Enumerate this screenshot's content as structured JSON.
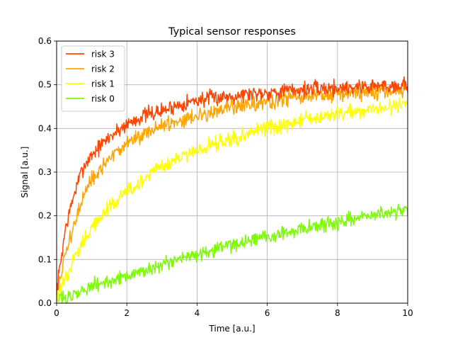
{
  "chart_data": {
    "type": "line",
    "title": "Typical sensor responses",
    "xlabel": "Time [a.u.]",
    "ylabel": "Signal [a.u.]",
    "xlim": [
      0,
      10
    ],
    "ylim": [
      0,
      0.6
    ],
    "xticks": [
      0,
      2,
      4,
      6,
      8,
      10
    ],
    "yticks": [
      0.0,
      0.1,
      0.2,
      0.3,
      0.4,
      0.5,
      0.6
    ],
    "grid": true,
    "legend_position": "top-left",
    "x": [
      0,
      0.25,
      0.5,
      0.75,
      1.0,
      1.5,
      2.0,
      2.5,
      3.0,
      3.5,
      4.0,
      4.5,
      5.0,
      5.5,
      6.0,
      6.5,
      7.0,
      7.5,
      8.0,
      8.5,
      9.0,
      9.5,
      10.0
    ],
    "series": [
      {
        "name": "risk 3",
        "color": "#ff4500",
        "values": [
          0.03,
          0.17,
          0.25,
          0.31,
          0.34,
          0.38,
          0.41,
          0.43,
          0.44,
          0.455,
          0.465,
          0.47,
          0.475,
          0.48,
          0.483,
          0.486,
          0.489,
          0.491,
          0.493,
          0.495,
          0.497,
          0.498,
          0.5
        ]
      },
      {
        "name": "risk 2",
        "color": "#ffa500",
        "values": [
          0.02,
          0.11,
          0.18,
          0.24,
          0.28,
          0.33,
          0.365,
          0.39,
          0.405,
          0.42,
          0.43,
          0.44,
          0.448,
          0.455,
          0.46,
          0.466,
          0.47,
          0.475,
          0.478,
          0.481,
          0.484,
          0.487,
          0.49
        ]
      },
      {
        "name": "risk 1",
        "color": "#ffff00",
        "values": [
          0.01,
          0.06,
          0.1,
          0.14,
          0.17,
          0.22,
          0.255,
          0.285,
          0.31,
          0.33,
          0.35,
          0.365,
          0.378,
          0.39,
          0.4,
          0.41,
          0.418,
          0.426,
          0.433,
          0.44,
          0.446,
          0.452,
          0.457
        ]
      },
      {
        "name": "risk 0",
        "color": "#7cfc00",
        "values": [
          0.005,
          0.012,
          0.02,
          0.03,
          0.038,
          0.05,
          0.062,
          0.075,
          0.088,
          0.1,
          0.112,
          0.123,
          0.133,
          0.143,
          0.152,
          0.161,
          0.17,
          0.178,
          0.186,
          0.194,
          0.201,
          0.208,
          0.215
        ]
      }
    ]
  }
}
